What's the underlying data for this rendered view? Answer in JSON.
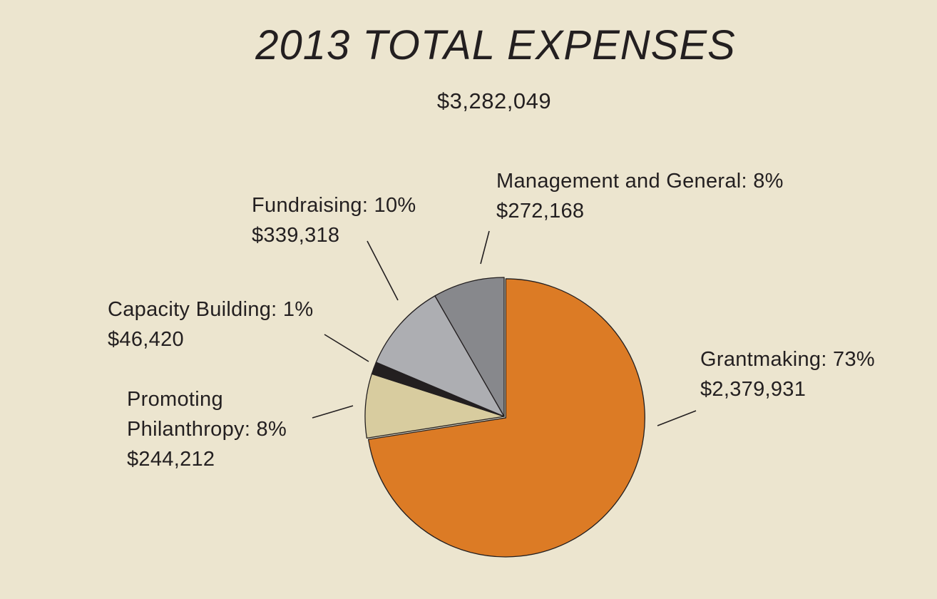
{
  "chart_data": {
    "type": "pie",
    "title": "2013 TOTAL EXPENSES",
    "subtitle": "$3,282,049",
    "slices": [
      {
        "name": "Grantmaking",
        "percent_label": "73%",
        "amount": "$2,379,931",
        "value": 2379931,
        "color": "#dc7b25",
        "label_lines": [
          "Grantmaking: 73%",
          "$2,379,931"
        ]
      },
      {
        "name": "Promoting Philanthropy",
        "percent_label": "8%",
        "amount": "$244,212",
        "value": 244212,
        "color": "#d8cc9f",
        "label_lines": [
          "Promoting",
          "Philanthropy: 8%",
          "$244,212"
        ]
      },
      {
        "name": "Capacity Building",
        "percent_label": "1%",
        "amount": "$46,420",
        "value": 46420,
        "color": "#231f20",
        "label_lines": [
          "Capacity Building: 1%",
          "$46,420"
        ]
      },
      {
        "name": "Fundraising",
        "percent_label": "10%",
        "amount": "$339,318",
        "value": 339318,
        "color": "#adaeb2",
        "label_lines": [
          "Fundraising: 10%",
          "$339,318"
        ]
      },
      {
        "name": "Management and General",
        "percent_label": "8%",
        "amount": "$272,168",
        "value": 272168,
        "color": "#87888c",
        "label_lines": [
          "Management and General: 8%",
          "$272,168"
        ]
      }
    ]
  }
}
